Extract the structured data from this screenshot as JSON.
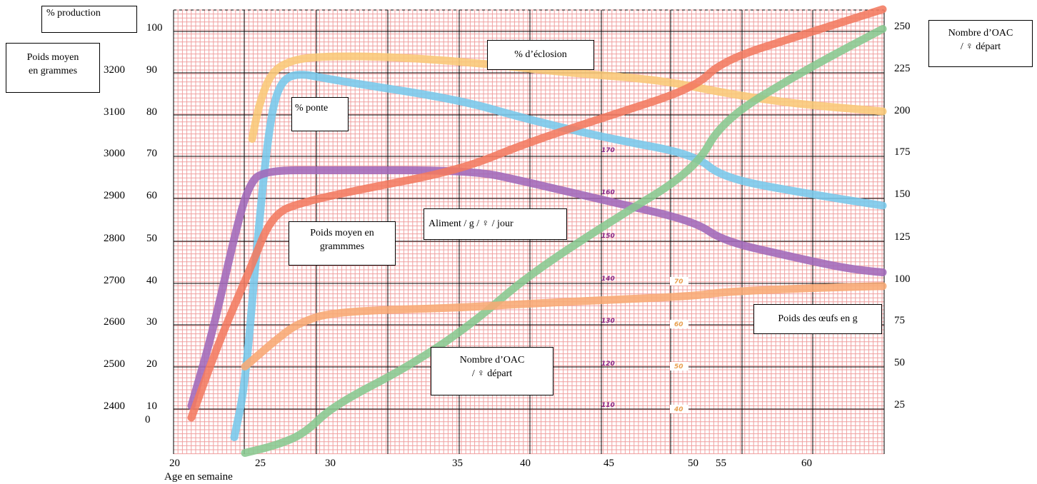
{
  "labels": {
    "production": "% production",
    "weight_left": [
      "Poids moyen",
      "en grammes"
    ],
    "oac_right": [
      "Nombre d’OAC",
      "/ ♀ départ"
    ],
    "hatch": "% d’éclosion",
    "laying": "% ponte",
    "feed": "Aliment / g / ♀ / jour",
    "weight_inner": [
      "Poids moyen en",
      "grammmes"
    ],
    "oac_inner": [
      "Nombre d’OAC",
      "/ ♀ départ"
    ],
    "eggs": "Poids des œufs en g",
    "xaxis": "Age en semaine"
  },
  "colors": {
    "grid_minor": "#f0a0a0",
    "grid_major": "#000000",
    "hatch": "#f9c878",
    "laying": "#78c8ec",
    "feed": "#a068b8",
    "weight": "#f27a60",
    "oac": "#88c890",
    "eggs": "#f8aa74",
    "feed_scale": "#8a2a8a",
    "egg_scale": "#e8a050"
  },
  "chart_data": {
    "type": "line",
    "x_ticks": [
      "20",
      "25",
      "30",
      "35",
      "40",
      "45",
      "50",
      "55",
      "60"
    ],
    "y_production_ticks": [
      "100",
      "90",
      "80",
      "70",
      "60",
      "50",
      "40",
      "30",
      "20",
      "10",
      "0"
    ],
    "y_weight_ticks": [
      "3200",
      "3100",
      "3000",
      "2900",
      "2800",
      "2700",
      "2600",
      "2500",
      "2400"
    ],
    "y_right_ticks": [
      "250",
      "225",
      "200",
      "175",
      "150",
      "125",
      "100",
      "75",
      "50",
      "25"
    ],
    "feed_scale_ticks": [
      "170",
      "160",
      "150",
      "140",
      "130",
      "120",
      "110"
    ],
    "egg_scale_ticks": [
      "70",
      "60",
      "50",
      "40"
    ],
    "xlabel": "Age en semaine",
    "series": [
      {
        "name": "% d’éclosion",
        "color": "#f9c878",
        "points": [
          [
            24.4,
            71
          ],
          [
            24.8,
            80
          ],
          [
            25.6,
            88
          ],
          [
            27,
            91
          ],
          [
            29,
            92
          ],
          [
            32,
            92
          ],
          [
            36,
            90.5
          ],
          [
            42,
            88
          ],
          [
            48,
            86
          ],
          [
            54,
            83
          ],
          [
            59,
            80
          ],
          [
            64,
            78
          ]
        ]
      },
      {
        "name": "% ponte",
        "color": "#78c8ec",
        "points": [
          [
            23.4,
            -5
          ],
          [
            24,
            8
          ],
          [
            24.6,
            40
          ],
          [
            25.3,
            70
          ],
          [
            26,
            84
          ],
          [
            27.2,
            88
          ],
          [
            30,
            86
          ],
          [
            35,
            81
          ],
          [
            40,
            76
          ],
          [
            45,
            71
          ],
          [
            50,
            67
          ],
          [
            55,
            61
          ],
          [
            60,
            57
          ],
          [
            64,
            54
          ]
        ]
      },
      {
        "name": "Aliment / g / ♀ / jour",
        "color": "#a068b8",
        "points": [
          [
            21,
            3
          ],
          [
            22.2,
            22
          ],
          [
            23.5,
            48
          ],
          [
            24.2,
            59
          ],
          [
            25,
            63
          ],
          [
            30,
            63
          ],
          [
            36,
            63
          ],
          [
            40,
            60
          ],
          [
            45,
            55
          ],
          [
            50,
            50
          ],
          [
            55,
            45
          ],
          [
            59,
            41
          ],
          [
            62,
            38
          ],
          [
            64,
            37
          ]
        ]
      },
      {
        "name": "Poids moyen en grammmes",
        "color": "#f27a60",
        "points": [
          [
            21,
            0
          ],
          [
            22.6,
            20
          ],
          [
            24.3,
            38
          ],
          [
            25.7,
            52
          ],
          [
            28,
            55
          ],
          [
            31,
            58
          ],
          [
            35,
            63
          ],
          [
            40,
            70
          ],
          [
            45,
            77
          ],
          [
            50,
            84
          ],
          [
            55,
            91
          ],
          [
            60,
            98
          ],
          [
            64,
            104
          ]
        ]
      },
      {
        "name": "Nombre d’OAC / ♀ départ",
        "color": "#88c890",
        "points": [
          [
            24,
            -9
          ],
          [
            26,
            -7
          ],
          [
            28,
            -4
          ],
          [
            30,
            3
          ],
          [
            33,
            13
          ],
          [
            36,
            24
          ],
          [
            40,
            36
          ],
          [
            45,
            50
          ],
          [
            50,
            63
          ],
          [
            55,
            76
          ],
          [
            60,
            89
          ],
          [
            64,
            99
          ]
        ]
      },
      {
        "name": "Poids des œufs en g",
        "color": "#f8aa74",
        "points": [
          [
            24,
            13
          ],
          [
            26,
            20
          ],
          [
            27.5,
            24
          ],
          [
            30,
            27
          ],
          [
            35,
            28
          ],
          [
            40,
            29
          ],
          [
            45,
            30
          ],
          [
            50,
            31
          ],
          [
            55,
            32
          ],
          [
            60,
            33
          ],
          [
            64,
            33.5
          ]
        ]
      }
    ]
  }
}
